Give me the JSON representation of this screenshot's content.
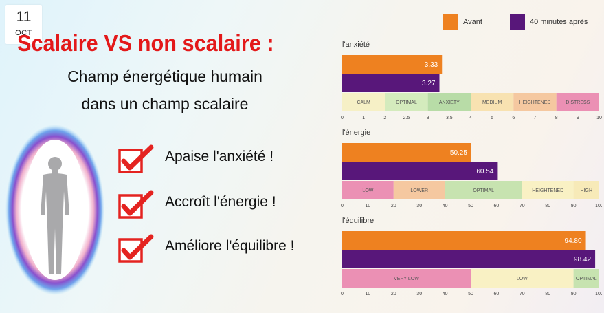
{
  "badge": {
    "day": "11",
    "month": "OCT"
  },
  "header": {
    "title": "Scalaire VS non scalaire :",
    "subtitle_line1": "Champ énergétique humain",
    "subtitle_line2": "dans un champ scalaire"
  },
  "benefits": [
    "Apaise l'anxiété !",
    "Accroît l'énergie !",
    "Améliore l'équilibre !"
  ],
  "icons": {
    "checkmark": "red-checkbox-icon",
    "figure": "human-energy-field-icon"
  },
  "colors": {
    "avant": "#ee8120",
    "apres": "#58177a",
    "title_red": "#e3191a",
    "check_red": "#e42320"
  },
  "chart_data": {
    "type": "bar",
    "legend": {
      "position": "top-right",
      "entries": [
        "Avant",
        "40 minutes après"
      ]
    },
    "panels": [
      {
        "title": "l'anxiété",
        "series": [
          {
            "name": "Avant",
            "value": 3.33,
            "label": "3.33"
          },
          {
            "name": "40 minutes après",
            "value": 3.27,
            "label": "3.27"
          }
        ],
        "ticks": [
          0,
          1,
          2,
          2.5,
          3,
          3.5,
          4,
          5,
          6,
          7,
          8,
          9,
          10
        ],
        "zones": [
          {
            "label": "CALM",
            "from": 0,
            "to": 2,
            "color": "#f6f0c6"
          },
          {
            "label": "OPTIMAL",
            "from": 2,
            "to": 3,
            "color": "#d4ebbd"
          },
          {
            "label": "ANXIETY",
            "from": 3,
            "to": 4,
            "color": "#b8dca7"
          },
          {
            "label": "MEDIUM",
            "from": 4,
            "to": 6,
            "color": "#f8e2b1"
          },
          {
            "label": "HEIGHTENED",
            "from": 6,
            "to": 8,
            "color": "#f5c8a0"
          },
          {
            "label": "DISTRESS",
            "from": 8,
            "to": 10,
            "color": "#eb90b4"
          }
        ]
      },
      {
        "title": "l'énergie",
        "series": [
          {
            "name": "Avant",
            "value": 50.25,
            "label": "50.25"
          },
          {
            "name": "40 minutes après",
            "value": 60.54,
            "label": "60.54"
          }
        ],
        "ticks": [
          0,
          10,
          20,
          30,
          40,
          50,
          60,
          70,
          80,
          90,
          100
        ],
        "zones": [
          {
            "label": "LOW",
            "from": 0,
            "to": 20,
            "color": "#eb90b4"
          },
          {
            "label": "LOWER",
            "from": 20,
            "to": 40,
            "color": "#f5c8a0"
          },
          {
            "label": "OPTIMAL",
            "from": 40,
            "to": 70,
            "color": "#c7e3b0"
          },
          {
            "label": "HEIGHTENED",
            "from": 70,
            "to": 90,
            "color": "#f9f1c4"
          },
          {
            "label": "HIGH",
            "from": 90,
            "to": 100,
            "color": "#f7eab8"
          }
        ]
      },
      {
        "title": "l'équilibre",
        "series": [
          {
            "name": "Avant",
            "value": 94.8,
            "label": "94.80"
          },
          {
            "name": "40 minutes après",
            "value": 98.42,
            "label": "98.42"
          }
        ],
        "ticks": [
          0,
          10,
          20,
          30,
          40,
          50,
          60,
          70,
          80,
          90,
          100
        ],
        "zones": [
          {
            "label": "VERY LOW",
            "from": 0,
            "to": 50,
            "color": "#eb90b4"
          },
          {
            "label": "LOW",
            "from": 50,
            "to": 90,
            "color": "#f9f1c4"
          },
          {
            "label": "OPTIMAL",
            "from": 90,
            "to": 100,
            "color": "#c7e3b0"
          }
        ]
      }
    ]
  }
}
